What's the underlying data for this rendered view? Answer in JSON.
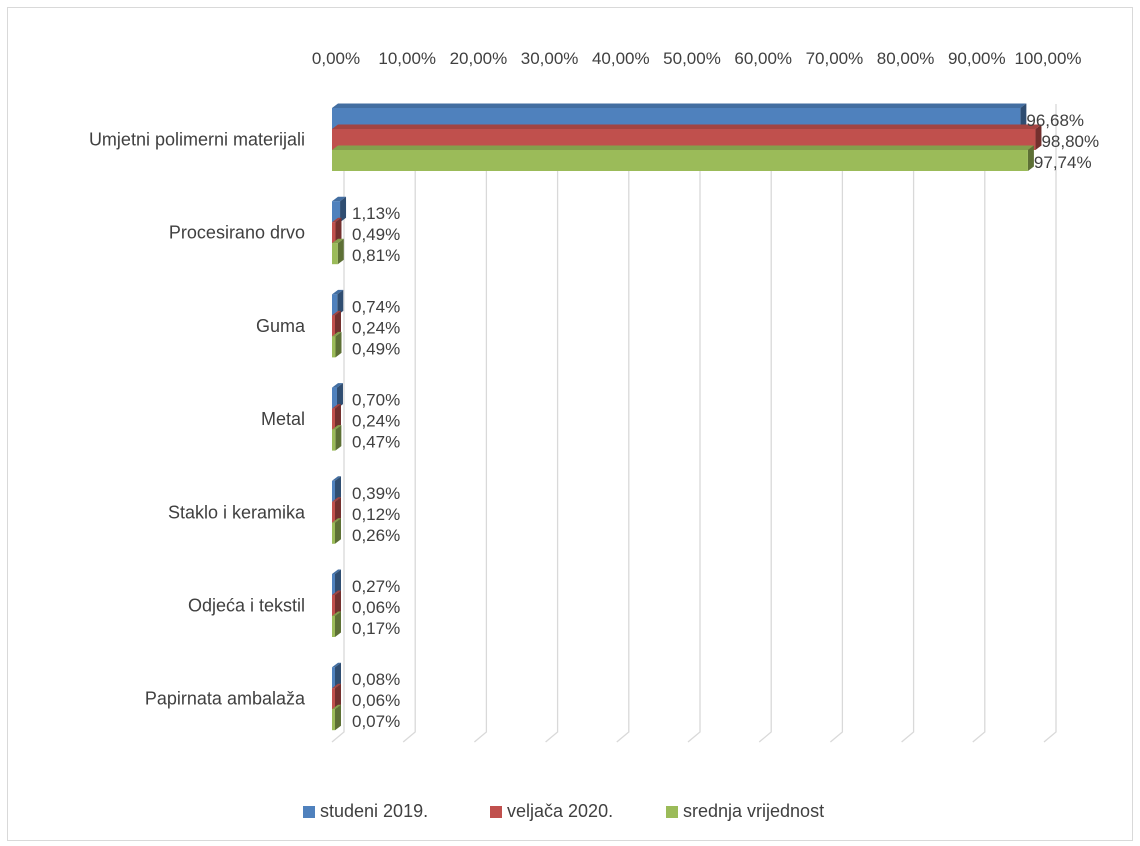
{
  "chart_data": {
    "type": "bar",
    "orientation": "horizontal",
    "style": "3d-clustered",
    "title": "",
    "xlabel": "",
    "ylabel": "",
    "xlim": [
      0,
      100
    ],
    "x_ticks": [
      "0,00%",
      "10,00%",
      "20,00%",
      "30,00%",
      "40,00%",
      "50,00%",
      "60,00%",
      "70,00%",
      "80,00%",
      "90,00%",
      "100,00%"
    ],
    "grid": true,
    "legend_position": "bottom",
    "categories": [
      "Umjetni polimerni materijali",
      "Procesirano drvo",
      "Guma",
      "Metal",
      "Staklo i keramika",
      "Odjeća i tekstil",
      "Papirnata ambalaža"
    ],
    "series": [
      {
        "name": "studeni 2019.",
        "color": "#4f81bd",
        "values": [
          96.68,
          1.13,
          0.74,
          0.7,
          0.39,
          0.27,
          0.08
        ],
        "labels": [
          "96,68%",
          "1,13%",
          "0,74%",
          "0,70%",
          "0,39%",
          "0,27%",
          "0,08%"
        ]
      },
      {
        "name": "veljača 2020.",
        "color": "#c0504d",
        "values": [
          98.8,
          0.49,
          0.24,
          0.24,
          0.12,
          0.06,
          0.06
        ],
        "labels": [
          "98,80%",
          "0,49%",
          "0,24%",
          "0,24%",
          "0,12%",
          "0,06%",
          "0,06%"
        ]
      },
      {
        "name": "srednja vrijednost",
        "color": "#9bbb59",
        "values": [
          97.74,
          0.81,
          0.49,
          0.47,
          0.26,
          0.17,
          0.07
        ],
        "labels": [
          "97,74%",
          "0,81%",
          "0,49%",
          "0,47%",
          "0,26%",
          "0,17%",
          "0,07%"
        ]
      }
    ]
  }
}
